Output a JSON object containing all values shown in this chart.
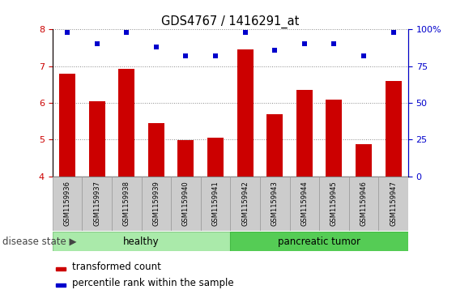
{
  "title": "GDS4767 / 1416291_at",
  "samples": [
    "GSM1159936",
    "GSM1159937",
    "GSM1159938",
    "GSM1159939",
    "GSM1159940",
    "GSM1159941",
    "GSM1159942",
    "GSM1159943",
    "GSM1159944",
    "GSM1159945",
    "GSM1159946",
    "GSM1159947"
  ],
  "transformed_counts": [
    6.8,
    6.05,
    6.92,
    5.45,
    4.98,
    5.05,
    7.45,
    5.7,
    6.35,
    6.1,
    4.88,
    6.6
  ],
  "percentile_ranks": [
    98,
    90,
    98,
    88,
    82,
    82,
    98,
    86,
    90,
    90,
    82,
    98
  ],
  "disease_groups": [
    "healthy",
    "healthy",
    "healthy",
    "healthy",
    "healthy",
    "healthy",
    "pancreatic tumor",
    "pancreatic tumor",
    "pancreatic tumor",
    "pancreatic tumor",
    "pancreatic tumor",
    "pancreatic tumor"
  ],
  "healthy_color": "#AAEAAA",
  "tumor_color": "#55CC55",
  "bar_color": "#CC0000",
  "dot_color": "#0000CC",
  "ylim_left": [
    4,
    8
  ],
  "ylim_right": [
    0,
    100
  ],
  "yticks_left": [
    4,
    5,
    6,
    7,
    8
  ],
  "yticks_right": [
    0,
    25,
    50,
    75,
    100
  ],
  "left_tick_color": "#CC0000",
  "right_tick_color": "#0000CC",
  "label_bg_color": "#CCCCCC",
  "legend_items": [
    "transformed count",
    "percentile rank within the sample"
  ],
  "legend_colors": [
    "#CC0000",
    "#0000CC"
  ],
  "disease_label": "disease state"
}
